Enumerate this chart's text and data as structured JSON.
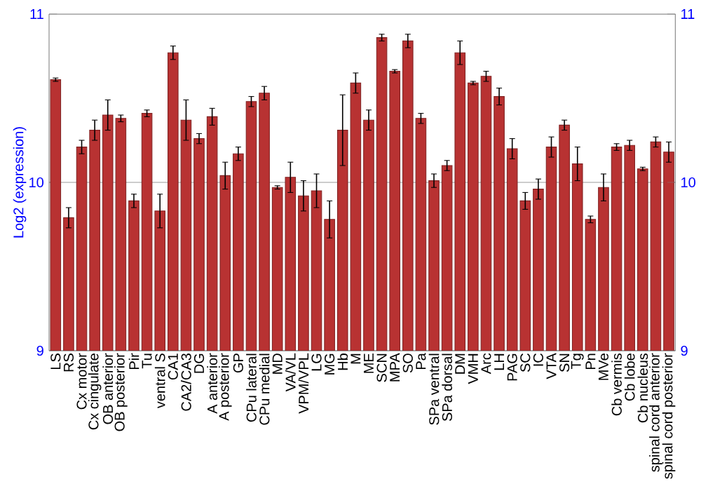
{
  "chart_data": {
    "type": "bar",
    "ylabel": "Log2 (expression)",
    "categories": [
      "LS",
      "RS",
      "Cx motor",
      "Cx cingulate",
      "OB anterior",
      "OB posterior",
      "Pir",
      "Tu",
      "ventral S",
      "CA1",
      "CA2/CA3",
      "DG",
      "A anterior",
      "A posterior",
      "GP",
      "CPu lateral",
      "CPu medial",
      "MD",
      "VA/VL",
      "VPM/VPL",
      "LG",
      "MG",
      "Hb",
      "M",
      "ME",
      "SCN",
      "MPA",
      "SO",
      "Pa",
      "SPa ventral",
      "SPa dorsal",
      "DM",
      "VMH",
      "Arc",
      "LH",
      "PAG",
      "SC",
      "IC",
      "VTA",
      "SN",
      "Tg",
      "Pn",
      "MVe",
      "Cb vermis",
      "Cb lobe",
      "Cb nucleus",
      "spinal cord anterior",
      "spinal cord posterior"
    ],
    "values": [
      10.61,
      9.79,
      10.21,
      10.31,
      10.4,
      10.38,
      9.89,
      10.41,
      9.83,
      10.77,
      10.37,
      10.26,
      10.39,
      10.04,
      10.17,
      10.48,
      10.53,
      9.97,
      10.03,
      9.92,
      9.95,
      9.78,
      10.31,
      10.59,
      10.37,
      10.86,
      10.66,
      10.84,
      10.38,
      10.01,
      10.1,
      10.77,
      10.59,
      10.63,
      10.51,
      10.2,
      9.89,
      9.96,
      10.21,
      10.34,
      10.11,
      9.78,
      9.97,
      10.21,
      10.22,
      10.08,
      10.24,
      10.18
    ],
    "errors": [
      0.01,
      0.06,
      0.04,
      0.06,
      0.09,
      0.02,
      0.04,
      0.02,
      0.1,
      0.04,
      0.12,
      0.03,
      0.05,
      0.08,
      0.04,
      0.03,
      0.04,
      0.01,
      0.09,
      0.09,
      0.1,
      0.11,
      0.21,
      0.06,
      0.06,
      0.02,
      0.01,
      0.04,
      0.03,
      0.04,
      0.03,
      0.07,
      0.01,
      0.03,
      0.05,
      0.06,
      0.05,
      0.06,
      0.06,
      0.03,
      0.1,
      0.02,
      0.08,
      0.02,
      0.03,
      0.01,
      0.03,
      0.06
    ],
    "color": "#b83232",
    "ylim": [
      9,
      11
    ],
    "yticks": [
      9,
      10,
      11
    ],
    "y2lim": [
      9,
      11
    ],
    "y2ticks": [
      9,
      10,
      11
    ],
    "grid": "y"
  }
}
